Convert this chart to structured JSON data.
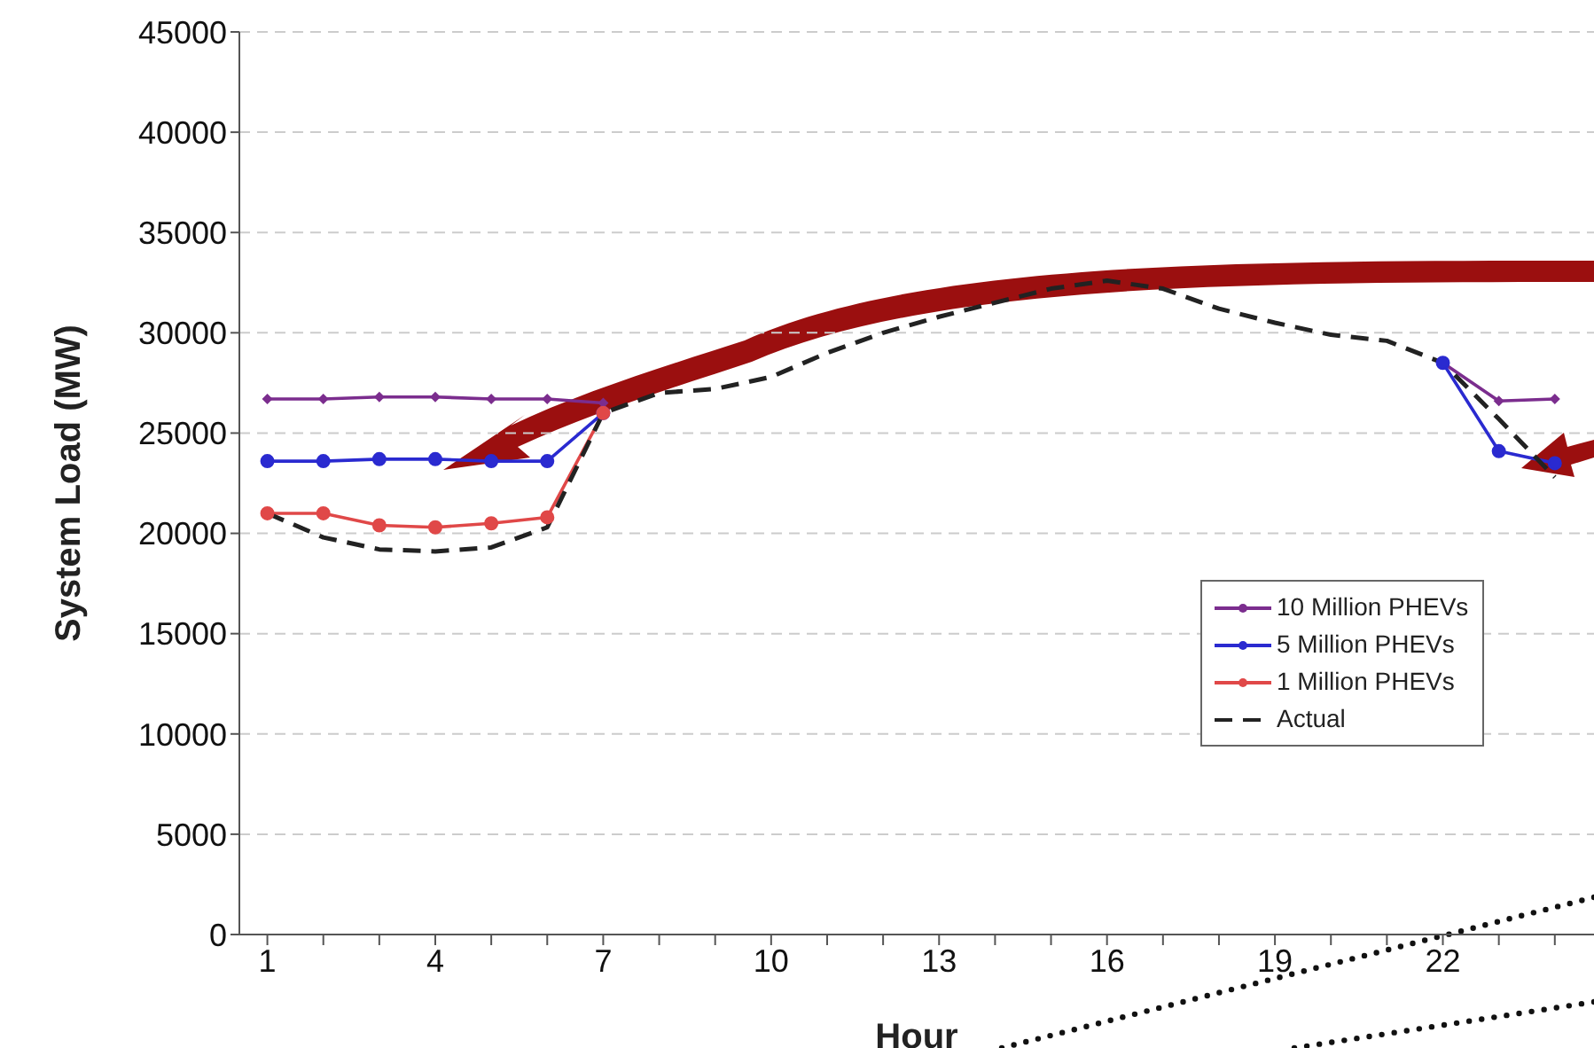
{
  "chart_data": {
    "type": "line",
    "xlabel": "Hour",
    "ylabel": "System Load (MW)",
    "x": [
      1,
      2,
      3,
      4,
      5,
      6,
      7,
      8,
      9,
      10,
      11,
      12,
      13,
      14,
      15,
      16,
      17,
      18,
      19,
      20,
      21,
      22,
      23,
      24
    ],
    "xlim": [
      0.5,
      24.7
    ],
    "xticks": [
      1,
      {
        "value": 2,
        "label": null
      },
      {
        "value": 3,
        "label": null
      },
      4,
      {
        "value": 5,
        "label": null
      },
      {
        "value": 6,
        "label": null
      },
      7,
      {
        "value": 8,
        "label": null
      },
      {
        "value": 9,
        "label": null
      },
      10,
      {
        "value": 11,
        "label": null
      },
      {
        "value": 12,
        "label": null
      },
      13,
      {
        "value": 14,
        "label": null
      },
      {
        "value": 15,
        "label": null
      },
      16,
      {
        "value": 17,
        "label": null
      },
      {
        "value": 18,
        "label": null
      },
      19,
      {
        "value": 20,
        "label": null
      },
      {
        "value": 21,
        "label": null
      },
      22,
      {
        "value": 23,
        "label": null
      },
      {
        "value": 24,
        "label": null
      }
    ],
    "ylim": [
      0,
      45000
    ],
    "yticks": [
      0,
      5000,
      10000,
      15000,
      20000,
      25000,
      30000,
      35000,
      40000,
      45000
    ],
    "grid": "y",
    "legend": "right",
    "series": [
      {
        "name": "10 Million PHEVs",
        "color": "#7b2d8e",
        "marker": "diamond",
        "values": [
          26700,
          26700,
          26800,
          26800,
          26700,
          26700,
          26500,
          null,
          null,
          null,
          null,
          null,
          null,
          null,
          null,
          null,
          null,
          null,
          null,
          null,
          null,
          28500,
          26600,
          26700
        ]
      },
      {
        "name": "5 Million PHEVs",
        "color": "#2a2ad0",
        "marker": "circle",
        "values": [
          23600,
          23600,
          23700,
          23700,
          23600,
          23600,
          26000,
          null,
          null,
          null,
          null,
          null,
          null,
          null,
          null,
          null,
          null,
          null,
          null,
          null,
          null,
          28500,
          24100,
          23500
        ]
      },
      {
        "name": "1 Million PHEVs",
        "color": "#e04848",
        "marker": "circle",
        "values": [
          21000,
          21000,
          20400,
          20300,
          20500,
          20800,
          26000,
          null,
          null,
          null,
          null,
          null,
          null,
          null,
          null,
          null,
          null,
          null,
          null,
          null,
          null,
          null,
          null,
          null
        ]
      },
      {
        "name": "Actual",
        "color": "#222222",
        "marker": "none",
        "line_style": "dashed",
        "values": [
          21000,
          19800,
          19200,
          19100,
          19300,
          20300,
          26000,
          27000,
          27200,
          27800,
          29000,
          30000,
          30800,
          31500,
          32200,
          32600,
          32200,
          31200,
          30500,
          29900,
          29600,
          28500,
          25700,
          22800
        ]
      }
    ]
  }
}
